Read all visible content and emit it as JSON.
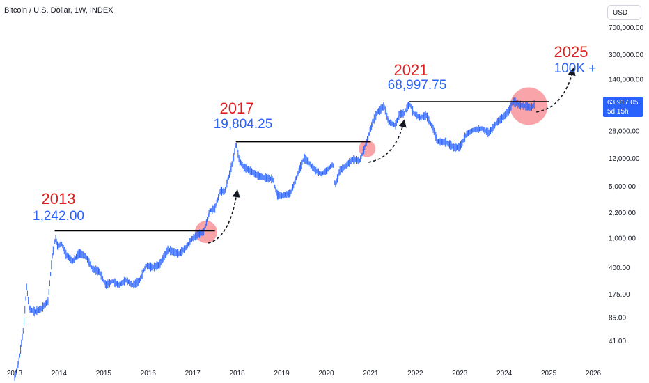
{
  "header": {
    "title": "Bitcoin / U.S. Dollar, 1W, INDEX"
  },
  "currency_button": {
    "label": "USD"
  },
  "last_price": {
    "value": "63,917.05",
    "countdown": "5d 15h"
  },
  "colors": {
    "candle": "#2962ff",
    "annotation_year": "#e01e1e",
    "annotation_value": "#2962ff",
    "highlight": "#f7868b",
    "level_line": "#000000"
  },
  "chart_data": {
    "type": "line",
    "title": "Bitcoin / U.S. Dollar, 1W, INDEX",
    "xlabel": "",
    "ylabel": "",
    "y_scale": "log",
    "xlim": [
      2013.0,
      2026.0
    ],
    "x_tick_labels": [
      "2013",
      "2014",
      "2015",
      "2016",
      "2017",
      "2018",
      "2019",
      "2020",
      "2021",
      "2022",
      "2023",
      "2024",
      "2025",
      "2026"
    ],
    "x_ticks": [
      2013,
      2014,
      2015,
      2016,
      2017,
      2018,
      2019,
      2020,
      2021,
      2022,
      2023,
      2024,
      2025,
      2026
    ],
    "y_tick_labels": [
      "700,000.00",
      "300,000.00",
      "140,000.00",
      "28,000.00",
      "12,000.00",
      "5,000.00",
      "2,200.00",
      "1,000.00",
      "400.00",
      "175.00",
      "85.00",
      "41.00"
    ],
    "y_ticks": [
      700000,
      300000,
      140000,
      28000,
      12000,
      5000,
      2200,
      1000,
      400,
      175,
      85,
      41
    ],
    "series": [
      {
        "values": [
          [
            2013.0,
            13
          ],
          [
            2013.1,
            22
          ],
          [
            2013.2,
            60
          ],
          [
            2013.27,
            220
          ],
          [
            2013.33,
            110
          ],
          [
            2013.45,
            100
          ],
          [
            2013.6,
            110
          ],
          [
            2013.75,
            140
          ],
          [
            2013.85,
            600
          ],
          [
            2013.92,
            1000
          ],
          [
            2013.97,
            750
          ],
          [
            2014.05,
            850
          ],
          [
            2014.15,
            600
          ],
          [
            2014.3,
            480
          ],
          [
            2014.45,
            620
          ],
          [
            2014.6,
            560
          ],
          [
            2014.75,
            380
          ],
          [
            2014.9,
            350
          ],
          [
            2015.05,
            230
          ],
          [
            2015.2,
            260
          ],
          [
            2015.35,
            230
          ],
          [
            2015.5,
            270
          ],
          [
            2015.65,
            230
          ],
          [
            2015.8,
            260
          ],
          [
            2015.95,
            420
          ],
          [
            2016.1,
            400
          ],
          [
            2016.25,
            430
          ],
          [
            2016.45,
            700
          ],
          [
            2016.55,
            650
          ],
          [
            2016.7,
            610
          ],
          [
            2016.85,
            740
          ],
          [
            2016.98,
            960
          ],
          [
            2017.1,
            1100
          ],
          [
            2017.25,
            1200
          ],
          [
            2017.38,
            2300
          ],
          [
            2017.5,
            2500
          ],
          [
            2017.62,
            4300
          ],
          [
            2017.72,
            4200
          ],
          [
            2017.82,
            7000
          ],
          [
            2017.92,
            12000
          ],
          [
            2017.97,
            19000
          ],
          [
            2018.05,
            11000
          ],
          [
            2018.15,
            9000
          ],
          [
            2018.3,
            8000
          ],
          [
            2018.45,
            7000
          ],
          [
            2018.6,
            6500
          ],
          [
            2018.8,
            6200
          ],
          [
            2018.9,
            3800
          ],
          [
            2019.0,
            3700
          ],
          [
            2019.2,
            4000
          ],
          [
            2019.35,
            7000
          ],
          [
            2019.5,
            12000
          ],
          [
            2019.6,
            10500
          ],
          [
            2019.75,
            8200
          ],
          [
            2019.9,
            7200
          ],
          [
            2020.05,
            8500
          ],
          [
            2020.15,
            10000
          ],
          [
            2020.2,
            5000
          ],
          [
            2020.3,
            8000
          ],
          [
            2020.45,
            9500
          ],
          [
            2020.6,
            11500
          ],
          [
            2020.75,
            11000
          ],
          [
            2020.85,
            15500
          ],
          [
            2020.95,
            24000
          ],
          [
            2021.05,
            37000
          ],
          [
            2021.15,
            50000
          ],
          [
            2021.3,
            60000
          ],
          [
            2021.4,
            37000
          ],
          [
            2021.55,
            33000
          ],
          [
            2021.65,
            47000
          ],
          [
            2021.75,
            48000
          ],
          [
            2021.87,
            65000
          ],
          [
            2021.97,
            48000
          ],
          [
            2022.1,
            42000
          ],
          [
            2022.25,
            45000
          ],
          [
            2022.4,
            30000
          ],
          [
            2022.5,
            20000
          ],
          [
            2022.7,
            19500
          ],
          [
            2022.87,
            16500
          ],
          [
            2023.0,
            16800
          ],
          [
            2023.15,
            25000
          ],
          [
            2023.3,
            28500
          ],
          [
            2023.5,
            30000
          ],
          [
            2023.65,
            26000
          ],
          [
            2023.85,
            37000
          ],
          [
            2023.98,
            43000
          ],
          [
            2024.1,
            52000
          ],
          [
            2024.2,
            70000
          ],
          [
            2024.35,
            62000
          ],
          [
            2024.5,
            60000
          ],
          [
            2024.6,
            57000
          ],
          [
            2024.68,
            63917
          ]
        ]
      }
    ],
    "level_lines": [
      {
        "y": 1242,
        "x_start": 2013.9,
        "x_end": 2017.5
      },
      {
        "y": 19804,
        "x_start": 2017.97,
        "x_end": 2021.0
      },
      {
        "y": 68997,
        "x_start": 2021.87,
        "x_end": 2025.0
      }
    ],
    "highlights": [
      {
        "x": 2017.3,
        "y": 1200
      },
      {
        "x": 2020.92,
        "y": 16000
      },
      {
        "x": 2024.55,
        "y": 60000
      }
    ],
    "annotations": [
      {
        "year": "2013",
        "value": "1,242.00"
      },
      {
        "year": "2017",
        "value": "19,804.25"
      },
      {
        "year": "2021",
        "value": "68,997.75"
      },
      {
        "year": "2025",
        "value": "100K +"
      }
    ],
    "projection_arrows": [
      {
        "from": [
          2017.35,
          850
        ],
        "to": [
          2018.0,
          4300
        ]
      },
      {
        "from": [
          2020.95,
          10500
        ],
        "to": [
          2021.75,
          38000
        ]
      },
      {
        "from": [
          2024.72,
          50000
        ],
        "to": [
          2025.55,
          190000
        ]
      }
    ]
  }
}
